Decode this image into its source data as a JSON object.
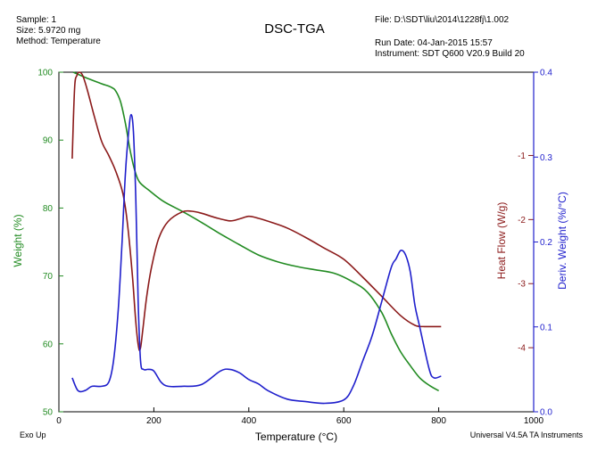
{
  "header": {
    "sample": "Sample: 1",
    "size": "Size:  5.9720 mg",
    "method": "Method: Temperature",
    "title": "DSC-TGA",
    "file": "File: D:\\SDT\\liu\\2014\\1228fj\\1.002",
    "run_date": "Run Date: 04-Jan-2015 15:57",
    "instrument": "Instrument: SDT Q600 V20.9 Build 20"
  },
  "footer": {
    "exo": "Exo Up",
    "software": "Universal V4.5A TA Instruments"
  },
  "colors": {
    "weight": "#228b22",
    "heat_flow": "#8b1a1a",
    "deriv": "#1f1fcc"
  },
  "chart_data": {
    "type": "line",
    "title": "DSC-TGA",
    "xlabel": "Temperature (°C)",
    "xlim": [
      0,
      1000
    ],
    "x_ticks": [
      0,
      200,
      400,
      600,
      800,
      1000
    ],
    "grid": false,
    "axes": {
      "weight": {
        "label": "Weight (%)",
        "lim": [
          50,
          100
        ],
        "ticks": [
          50,
          60,
          70,
          80,
          90,
          100
        ]
      },
      "heat_flow": {
        "label": "Heat Flow (W/g)",
        "lim": [
          -5,
          0.3
        ],
        "ticks": [
          -4,
          -3,
          -2,
          -1
        ]
      },
      "deriv": {
        "label": "Deriv. Weight (%/°C)",
        "lim": [
          0,
          0.4
        ],
        "ticks": [
          0.0,
          0.1,
          0.2,
          0.3,
          0.4
        ]
      }
    },
    "series": [
      {
        "name": "Weight (%)",
        "axis": "weight",
        "x": [
          30,
          60,
          90,
          110,
          120,
          130,
          140,
          150,
          160,
          170,
          190,
          220,
          260,
          300,
          340,
          380,
          420,
          460,
          500,
          540,
          580,
          620,
          650,
          680,
          700,
          720,
          740,
          760,
          780,
          800
        ],
        "y": [
          100,
          99.1,
          98.3,
          97.8,
          97.2,
          95.6,
          92.5,
          88.5,
          85.5,
          83.8,
          82.6,
          81.0,
          79.5,
          77.9,
          76.2,
          74.6,
          73.1,
          72.1,
          71.4,
          70.9,
          70.4,
          69.1,
          67.6,
          64.6,
          61.5,
          58.8,
          56.8,
          55.0,
          53.9,
          53.1
        ]
      },
      {
        "name": "Heat Flow (W/g)",
        "axis": "heat_flow",
        "x": [
          28,
          33,
          38,
          43,
          50,
          60,
          75,
          90,
          105,
          120,
          135,
          145,
          155,
          162,
          168,
          172,
          177,
          185,
          195,
          210,
          230,
          260,
          280,
          300,
          330,
          360,
          380,
          400,
          420,
          450,
          480,
          520,
          560,
          600,
          640,
          680,
          720,
          750,
          770,
          790,
          805
        ],
        "y": [
          -1.05,
          0.05,
          0.25,
          0.3,
          0.25,
          0.02,
          -0.4,
          -0.78,
          -1.0,
          -1.25,
          -1.6,
          -2.1,
          -2.9,
          -3.6,
          -4.0,
          -4.0,
          -3.7,
          -3.2,
          -2.75,
          -2.3,
          -2.03,
          -1.88,
          -1.87,
          -1.9,
          -1.97,
          -2.02,
          -1.99,
          -1.95,
          -1.98,
          -2.05,
          -2.13,
          -2.28,
          -2.45,
          -2.62,
          -2.9,
          -3.2,
          -3.5,
          -3.65,
          -3.67,
          -3.67,
          -3.67
        ]
      },
      {
        "name": "Deriv. Weight (%/°C)",
        "axis": "deriv",
        "x": [
          28,
          40,
          55,
          70,
          90,
          105,
          115,
          125,
          133,
          140,
          147,
          152,
          157,
          162,
          167,
          172,
          178,
          188,
          200,
          215,
          230,
          260,
          300,
          340,
          360,
          380,
          400,
          420,
          440,
          480,
          520,
          560,
          600,
          620,
          640,
          660,
          680,
          700,
          710,
          720,
          730,
          740,
          750,
          760,
          780,
          790,
          805
        ],
        "y": [
          0.04,
          0.025,
          0.025,
          0.03,
          0.03,
          0.035,
          0.06,
          0.12,
          0.2,
          0.28,
          0.33,
          0.35,
          0.33,
          0.25,
          0.13,
          0.06,
          0.05,
          0.05,
          0.048,
          0.035,
          0.03,
          0.03,
          0.032,
          0.048,
          0.05,
          0.046,
          0.038,
          0.033,
          0.025,
          0.015,
          0.012,
          0.01,
          0.014,
          0.03,
          0.06,
          0.09,
          0.13,
          0.17,
          0.18,
          0.19,
          0.185,
          0.165,
          0.125,
          0.1,
          0.05,
          0.04,
          0.042
        ]
      }
    ]
  }
}
